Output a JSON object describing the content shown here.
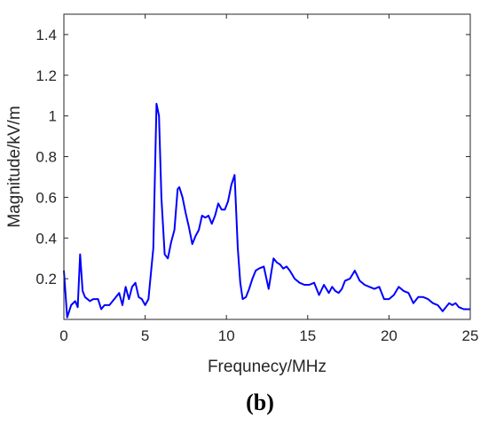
{
  "chart_data": {
    "type": "line",
    "xlabel": "Frequnecy/MHz",
    "ylabel": "Magnitude/kV/m",
    "panel_label": "(b)",
    "xlim": [
      0,
      25
    ],
    "ylim": [
      0,
      1.5
    ],
    "xticks": [
      "0",
      "5",
      "10",
      "15",
      "20",
      "25"
    ],
    "yticks": [
      "0.2",
      "0.4",
      "0.6",
      "0.8",
      "1",
      "1.2",
      "1.4"
    ],
    "grid": false,
    "series_color": "#0000ff",
    "x": [
      0,
      0.2,
      0.45,
      0.7,
      0.85,
      1.0,
      1.15,
      1.3,
      1.6,
      1.8,
      2.1,
      2.3,
      2.5,
      2.8,
      3.1,
      3.4,
      3.6,
      3.8,
      4.0,
      4.2,
      4.4,
      4.6,
      4.8,
      5.0,
      5.2,
      5.5,
      5.7,
      5.85,
      6.0,
      6.2,
      6.4,
      6.6,
      6.8,
      7.0,
      7.1,
      7.3,
      7.5,
      7.7,
      7.9,
      8.1,
      8.3,
      8.5,
      8.7,
      8.9,
      9.1,
      9.3,
      9.5,
      9.7,
      9.9,
      10.1,
      10.3,
      10.5,
      10.7,
      10.85,
      11.0,
      11.2,
      11.4,
      11.6,
      11.8,
      12.0,
      12.3,
      12.6,
      12.9,
      13.1,
      13.3,
      13.5,
      13.7,
      13.9,
      14.2,
      14.5,
      14.8,
      15.1,
      15.4,
      15.7,
      16.0,
      16.3,
      16.5,
      16.7,
      16.9,
      17.1,
      17.3,
      17.6,
      17.9,
      18.2,
      18.5,
      18.8,
      19.1,
      19.4,
      19.7,
      20.0,
      20.3,
      20.6,
      20.9,
      21.2,
      21.5,
      21.8,
      22.1,
      22.4,
      22.7,
      23.0,
      23.3,
      23.5,
      23.7,
      23.9,
      24.1,
      24.3,
      24.6,
      25.0
    ],
    "y": [
      0.24,
      0.01,
      0.07,
      0.09,
      0.06,
      0.32,
      0.14,
      0.11,
      0.09,
      0.1,
      0.1,
      0.05,
      0.07,
      0.07,
      0.1,
      0.13,
      0.07,
      0.16,
      0.1,
      0.16,
      0.18,
      0.11,
      0.1,
      0.07,
      0.1,
      0.35,
      1.06,
      1.0,
      0.6,
      0.32,
      0.3,
      0.38,
      0.44,
      0.64,
      0.65,
      0.6,
      0.52,
      0.45,
      0.37,
      0.41,
      0.44,
      0.51,
      0.5,
      0.51,
      0.47,
      0.51,
      0.57,
      0.54,
      0.54,
      0.58,
      0.66,
      0.71,
      0.35,
      0.18,
      0.1,
      0.11,
      0.15,
      0.2,
      0.24,
      0.25,
      0.26,
      0.15,
      0.3,
      0.28,
      0.27,
      0.25,
      0.26,
      0.24,
      0.2,
      0.18,
      0.17,
      0.17,
      0.18,
      0.12,
      0.17,
      0.13,
      0.16,
      0.14,
      0.13,
      0.15,
      0.19,
      0.2,
      0.24,
      0.19,
      0.17,
      0.16,
      0.15,
      0.16,
      0.1,
      0.1,
      0.12,
      0.16,
      0.14,
      0.13,
      0.08,
      0.11,
      0.11,
      0.1,
      0.08,
      0.07,
      0.04,
      0.06,
      0.08,
      0.07,
      0.08,
      0.06,
      0.05,
      0.05
    ]
  }
}
